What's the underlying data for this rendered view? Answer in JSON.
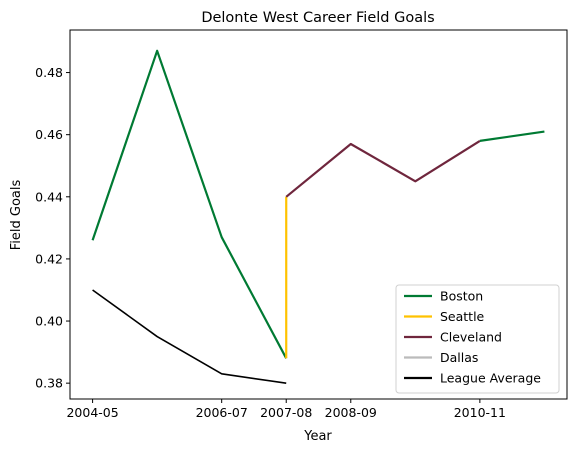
{
  "chart_data": {
    "type": "line",
    "title": "Delonte West Career Field Goals",
    "xlabel": "Year",
    "ylabel": "Field Goals",
    "x_ticks": [
      "2004-05",
      "2006-07",
      "2007-08",
      "2008-09",
      "2010-11"
    ],
    "x_tick_positions": [
      0,
      2,
      3,
      4,
      6
    ],
    "xlim": [
      -0.35,
      7.35
    ],
    "ylim": [
      0.3749,
      0.4937
    ],
    "y_ticks": [
      0.38,
      0.4,
      0.42,
      0.44,
      0.46,
      0.48
    ],
    "y_tick_labels": [
      "0.38",
      "0.40",
      "0.42",
      "0.44",
      "0.46",
      "0.48"
    ],
    "grid": false,
    "legend_position": "lower right",
    "series": [
      {
        "name": "Boston",
        "color": "#007A33",
        "points": [
          [
            0,
            0.426
          ],
          [
            1,
            0.487
          ],
          [
            2,
            0.427
          ],
          [
            3,
            0.388
          ]
        ]
      },
      {
        "name": "Seattle",
        "color": "#FFC200",
        "points": [
          [
            3,
            0.44
          ],
          [
            3,
            0.388
          ]
        ]
      },
      {
        "name": "Cleveland",
        "color": "#6F263D",
        "points": [
          [
            3,
            0.44
          ],
          [
            4,
            0.457
          ],
          [
            5,
            0.445
          ],
          [
            6,
            0.458
          ]
        ]
      },
      {
        "name": "Dallas",
        "color": "#BBBBBB",
        "points": []
      },
      {
        "name": "League Average",
        "color": "#000000",
        "points": [
          [
            0,
            0.41
          ],
          [
            1,
            0.395
          ],
          [
            2,
            0.383
          ],
          [
            3,
            0.38
          ]
        ]
      }
    ],
    "extra_segments": [
      {
        "series": "Boston",
        "color": "#007A33",
        "points": [
          [
            6,
            0.458
          ],
          [
            7,
            0.461
          ]
        ]
      }
    ]
  }
}
